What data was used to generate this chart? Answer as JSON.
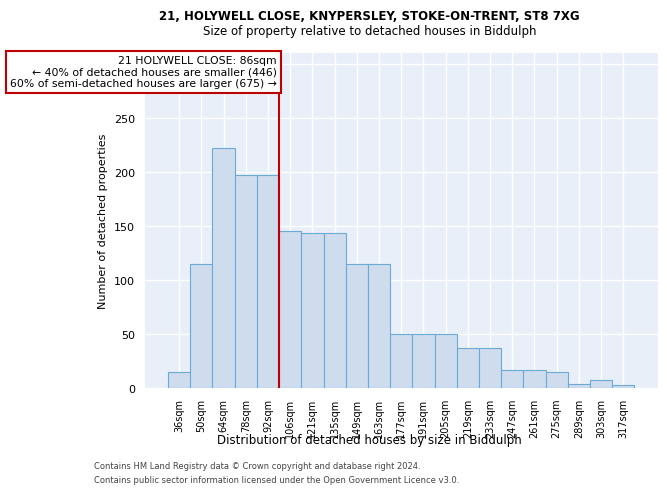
{
  "title_line1": "21, HOLYWELL CLOSE, KNYPERSLEY, STOKE-ON-TRENT, ST8 7XG",
  "title_line2": "Size of property relative to detached houses in Biddulph",
  "xlabel": "Distribution of detached houses by size in Biddulph",
  "ylabel": "Number of detached properties",
  "categories": [
    "36sqm",
    "50sqm",
    "64sqm",
    "78sqm",
    "92sqm",
    "106sqm",
    "121sqm",
    "135sqm",
    "149sqm",
    "163sqm",
    "177sqm",
    "191sqm",
    "205sqm",
    "219sqm",
    "233sqm",
    "247sqm",
    "261sqm",
    "275sqm",
    "289sqm",
    "303sqm",
    "317sqm"
  ],
  "values": [
    15,
    115,
    222,
    197,
    197,
    145,
    143,
    143,
    115,
    115,
    50,
    50,
    50,
    37,
    37,
    17,
    17,
    15,
    4,
    7,
    3
  ],
  "bar_color": "#cfdcee",
  "bar_edge_color": "#6aaad4",
  "vline_x": 4.5,
  "vline_color": "#c00000",
  "annotation_text": "21 HOLYWELL CLOSE: 86sqm\n← 40% of detached houses are smaller (446)\n60% of semi-detached houses are larger (675) →",
  "footer_line1": "Contains HM Land Registry data © Crown copyright and database right 2024.",
  "footer_line2": "Contains public sector information licensed under the Open Government Licence v3.0.",
  "bg_color": "#e8eff8",
  "grid_color": "#ffffff",
  "ylim": [
    0,
    310
  ],
  "yticks": [
    0,
    50,
    100,
    150,
    200,
    250,
    300
  ]
}
